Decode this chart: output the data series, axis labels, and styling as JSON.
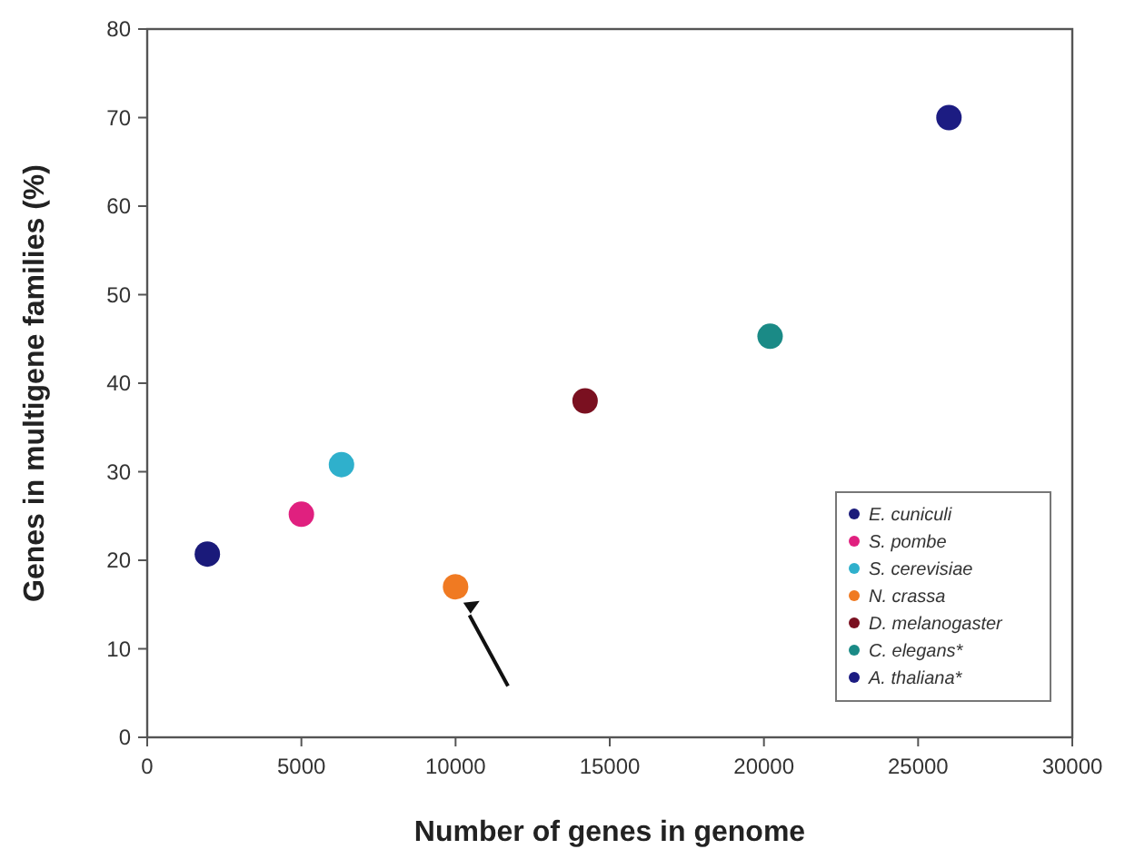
{
  "chart_data": {
    "type": "scatter",
    "xlabel": "Number of genes in genome",
    "ylabel": "Genes in multigene families (%)",
    "xlim": [
      0,
      30000
    ],
    "xticks": [
      0,
      5000,
      10000,
      15000,
      20000,
      25000,
      30000
    ],
    "ylim": [
      0,
      80
    ],
    "yticks": [
      0,
      10,
      20,
      30,
      40,
      50,
      60,
      70,
      80
    ],
    "grid": false,
    "legend": "bottom right",
    "marker": "circle",
    "series": [
      {
        "name": "E. cuniculi",
        "color": "#1a1a7a",
        "x": [
          1950
        ],
        "values": [
          20.7
        ]
      },
      {
        "name": "S. pombe",
        "color": "#e0207f",
        "x": [
          5000
        ],
        "values": [
          25.2
        ]
      },
      {
        "name": "S. cerevisiae",
        "color": "#2fb0cc",
        "x": [
          6300
        ],
        "values": [
          30.8
        ]
      },
      {
        "name": "N. crassa",
        "color": "#f07a22",
        "x": [
          10000
        ],
        "values": [
          17
        ]
      },
      {
        "name": "D. melanogaster",
        "color": "#7a1020",
        "x": [
          14200
        ],
        "values": [
          38
        ]
      },
      {
        "name": "C. elegans*",
        "color": "#1a8a86",
        "x": [
          20200
        ],
        "values": [
          45.3
        ]
      },
      {
        "name": "A. thaliana*",
        "color": "#1c1c82",
        "x": [
          26000
        ],
        "values": [
          70
        ]
      }
    ]
  }
}
